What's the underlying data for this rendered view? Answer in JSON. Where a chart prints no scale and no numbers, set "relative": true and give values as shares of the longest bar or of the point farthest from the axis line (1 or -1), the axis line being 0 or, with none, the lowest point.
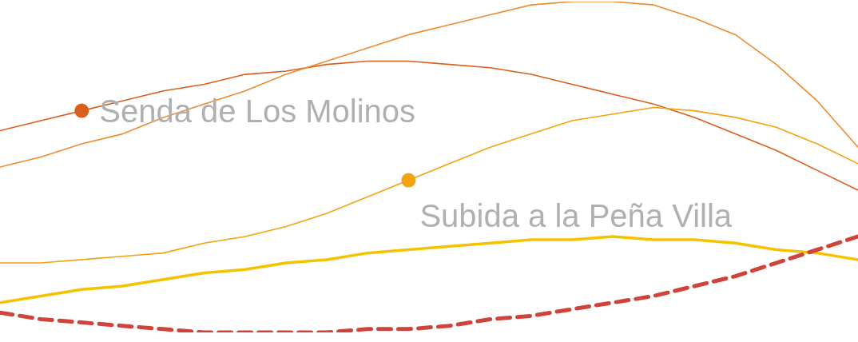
{
  "chart_data": {
    "type": "line",
    "relative": true,
    "categories": [
      null,
      null,
      null,
      null,
      null,
      null,
      null,
      null,
      null,
      null,
      null,
      null,
      null,
      null,
      null,
      null,
      null,
      null,
      null,
      null,
      null,
      null
    ],
    "grid": false,
    "legend": false,
    "series": [
      {
        "name": "Senda de Los Molinos",
        "color": "#d95f1e",
        "values": [
          0.61,
          0.64,
          0.67,
          0.7,
          0.73,
          0.75,
          0.78,
          0.79,
          0.81,
          0.82,
          0.82,
          0.81,
          0.8,
          0.78,
          0.75,
          0.72,
          0.69,
          0.65,
          0.6,
          0.55,
          0.49,
          0.43
        ]
      },
      {
        "color": "#ee8a30",
        "values": [
          0.5,
          0.53,
          0.57,
          0.6,
          0.65,
          0.69,
          0.73,
          0.78,
          0.82,
          0.86,
          0.9,
          0.93,
          0.96,
          0.99,
          1.0,
          1.0,
          0.99,
          0.95,
          0.9,
          0.81,
          0.7,
          0.56
        ]
      },
      {
        "name": "Subida a la Peña Villa",
        "color": "#f2a30f",
        "values": [
          0.21,
          0.21,
          0.22,
          0.23,
          0.24,
          0.27,
          0.29,
          0.32,
          0.36,
          0.41,
          0.46,
          0.51,
          0.56,
          0.6,
          0.64,
          0.66,
          0.68,
          0.67,
          0.65,
          0.62,
          0.57,
          0.51
        ]
      },
      {
        "color": "#f5c200",
        "values": [
          0.09,
          0.11,
          0.13,
          0.14,
          0.16,
          0.18,
          0.19,
          0.21,
          0.22,
          0.24,
          0.25,
          0.26,
          0.27,
          0.28,
          0.28,
          0.29,
          0.28,
          0.28,
          0.27,
          0.25,
          0.24,
          0.22
        ]
      },
      {
        "color": "#d0433a",
        "line_style": "dashed",
        "values": [
          0.06,
          0.04,
          0.03,
          0.02,
          0.01,
          0.0,
          0.0,
          0.0,
          0.0,
          0.01,
          0.01,
          0.02,
          0.04,
          0.05,
          0.07,
          0.09,
          0.11,
          0.14,
          0.17,
          0.21,
          0.25,
          0.29
        ]
      }
    ]
  }
}
